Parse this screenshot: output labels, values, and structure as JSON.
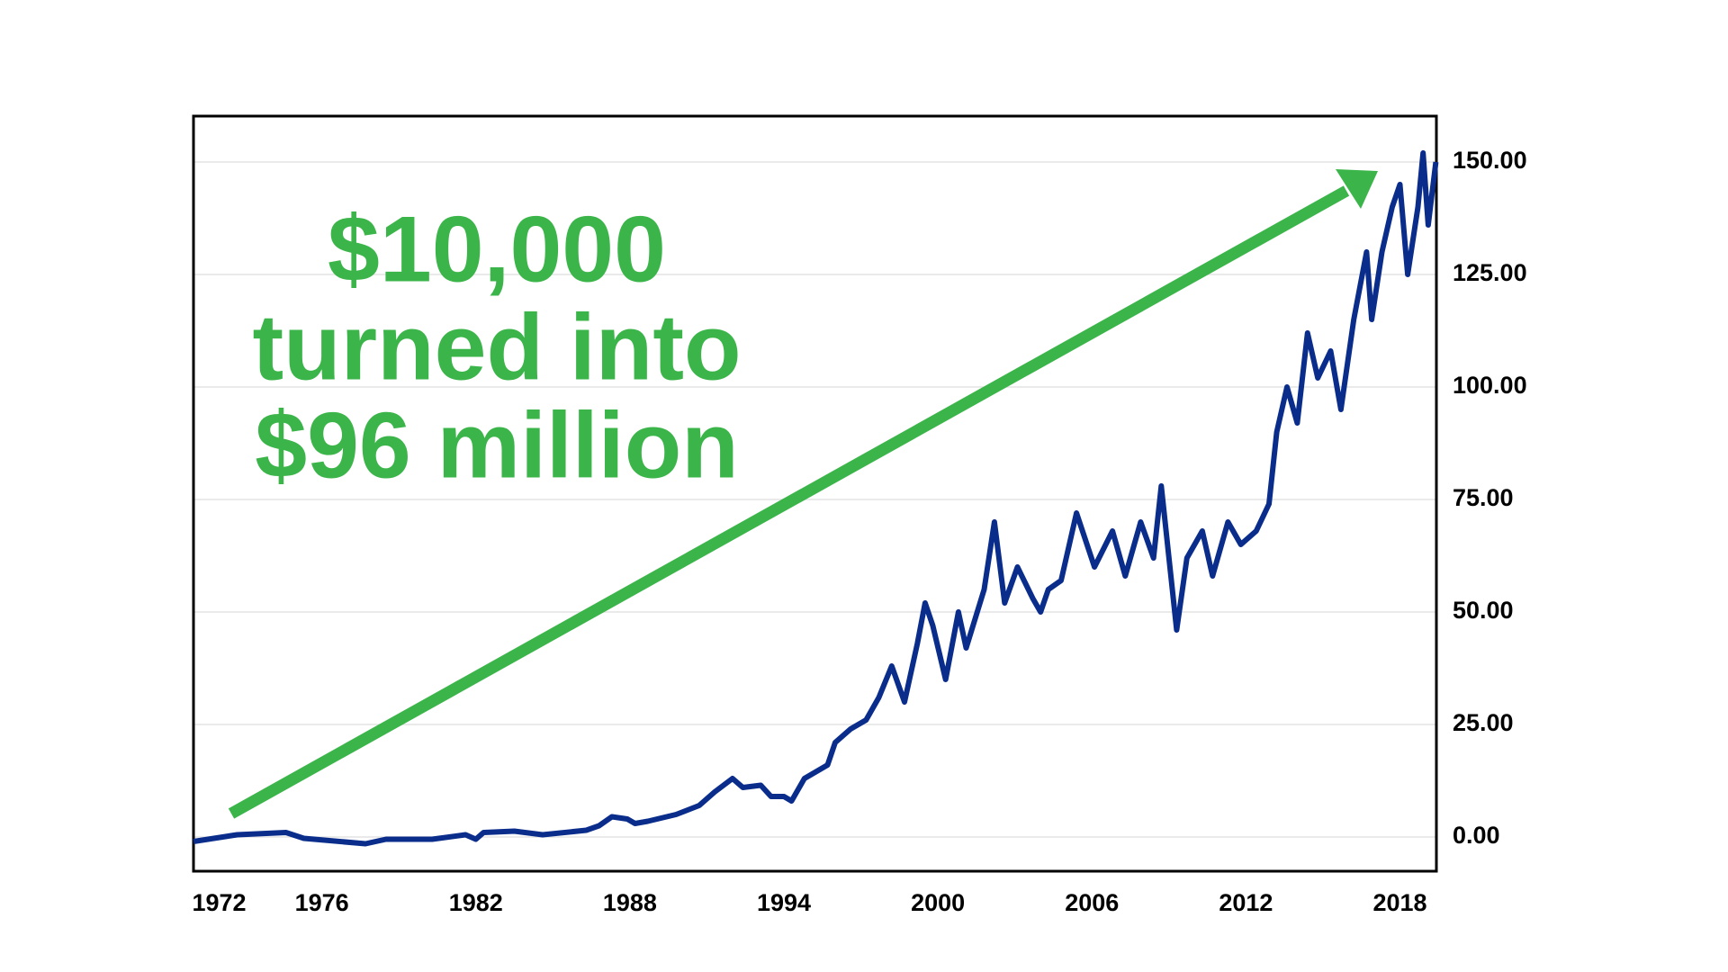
{
  "chart_data": {
    "type": "line",
    "annotation": [
      "$10,000",
      "turned into",
      "$96 million"
    ],
    "x": [
      1971.0,
      1972.7,
      1974.6,
      1975.3,
      1977.7,
      1978.5,
      1980.3,
      1981.6,
      1982.0,
      1982.3,
      1983.5,
      1984.6,
      1986.3,
      1986.8,
      1987.3,
      1987.9,
      1988.2,
      1988.7,
      1989.8,
      1990.7,
      1991.3,
      1992.0,
      1992.4,
      1993.1,
      1993.5,
      1994.0,
      1994.3,
      1994.8,
      1995.7,
      1996.0,
      1996.6,
      1997.2,
      1997.7,
      1998.2,
      1998.7,
      1999.2,
      1999.5,
      1999.8,
      2000.3,
      2000.8,
      2001.1,
      2001.8,
      2002.2,
      2002.6,
      2003.1,
      2003.7,
      2004.0,
      2004.3,
      2004.8,
      2005.4,
      2006.1,
      2006.8,
      2007.3,
      2007.9,
      2008.4,
      2008.7,
      2009.3,
      2009.7,
      2010.3,
      2010.7,
      2011.3,
      2011.8,
      2012.4,
      2012.9,
      2013.2,
      2013.6,
      2014.0,
      2014.4,
      2014.8,
      2015.3,
      2015.7,
      2016.2,
      2016.7,
      2016.9,
      2017.3,
      2017.7,
      2018.0,
      2018.3,
      2018.7,
      2018.9,
      2019.1,
      2019.4
    ],
    "values": [
      -1,
      0.5,
      1,
      -0.3,
      -1.5,
      -0.5,
      -0.5,
      0.5,
      -0.5,
      1,
      1.3,
      0.5,
      1.5,
      2.5,
      4.5,
      4,
      3,
      3.5,
      5,
      7,
      10,
      13,
      11,
      11.5,
      9,
      9,
      8,
      13,
      16,
      21,
      24,
      26,
      31,
      38,
      30,
      43,
      52,
      47,
      35,
      50,
      42,
      55,
      70,
      52,
      60,
      53,
      50,
      55,
      57,
      72,
      60,
      68,
      58,
      70,
      62,
      78,
      46,
      62,
      68,
      58,
      70,
      65,
      68,
      74,
      90,
      100,
      92,
      112,
      102,
      108,
      95,
      115,
      130,
      115,
      130,
      140,
      145,
      125,
      140,
      152,
      136,
      150
    ],
    "color": "#0a2d8c",
    "annotation_color": "#3bb54a",
    "xlim": [
      1971,
      2019.42
    ],
    "xticks": [
      1972,
      1976,
      1982,
      1988,
      1994,
      2000,
      2006,
      2012,
      2018
    ],
    "ylim": [
      -7.6,
      160.2
    ],
    "yticks": [
      {
        "value": 0,
        "label": "0.00"
      },
      {
        "value": 25,
        "label": "25.00"
      },
      {
        "value": 50,
        "label": "50.00"
      },
      {
        "value": 75,
        "label": "75.00"
      },
      {
        "value": 100,
        "label": "100.00"
      },
      {
        "value": 125,
        "label": "125.00"
      },
      {
        "value": 150,
        "label": "150.00"
      }
    ],
    "grid": true
  }
}
